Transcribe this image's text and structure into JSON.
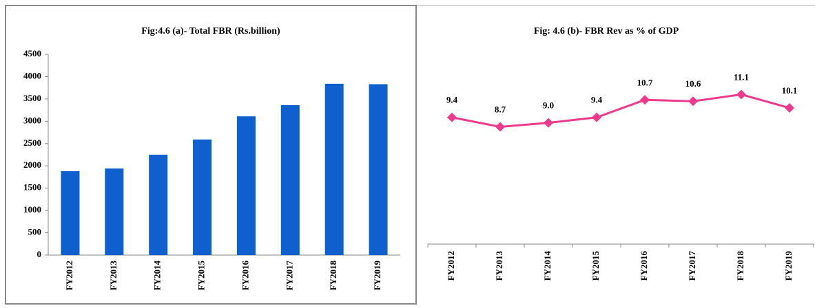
{
  "chart_data": [
    {
      "type": "bar",
      "title": "Fig:4.6 (a)- Total FBR (Rs.billion)",
      "categories": [
        "FY2012",
        "FY2013",
        "FY2014",
        "FY2015",
        "FY2016",
        "FY2017",
        "FY2018",
        "FY2019"
      ],
      "values": [
        1880,
        1940,
        2250,
        2590,
        3110,
        3360,
        3840,
        3830
      ],
      "color": "#0f5fcf",
      "ylim": [
        0,
        4500
      ],
      "yticks": [
        0,
        500,
        1000,
        1500,
        2000,
        2500,
        3000,
        3500,
        4000,
        4500
      ]
    },
    {
      "type": "line",
      "title": "Fig: 4.6 (b)- FBR Rev as % of GDP",
      "categories": [
        "FY2012",
        "FY2013",
        "FY2014",
        "FY2015",
        "FY2016",
        "FY2017",
        "FY2018",
        "FY2019"
      ],
      "values": [
        9.4,
        8.7,
        9.0,
        9.4,
        10.7,
        10.6,
        11.1,
        10.1
      ],
      "value_labels": [
        "9.4",
        "8.7",
        "9.0",
        "9.4",
        "10.7",
        "10.6",
        "11.1",
        "10.1"
      ],
      "color": "#ec3b8d"
    }
  ]
}
